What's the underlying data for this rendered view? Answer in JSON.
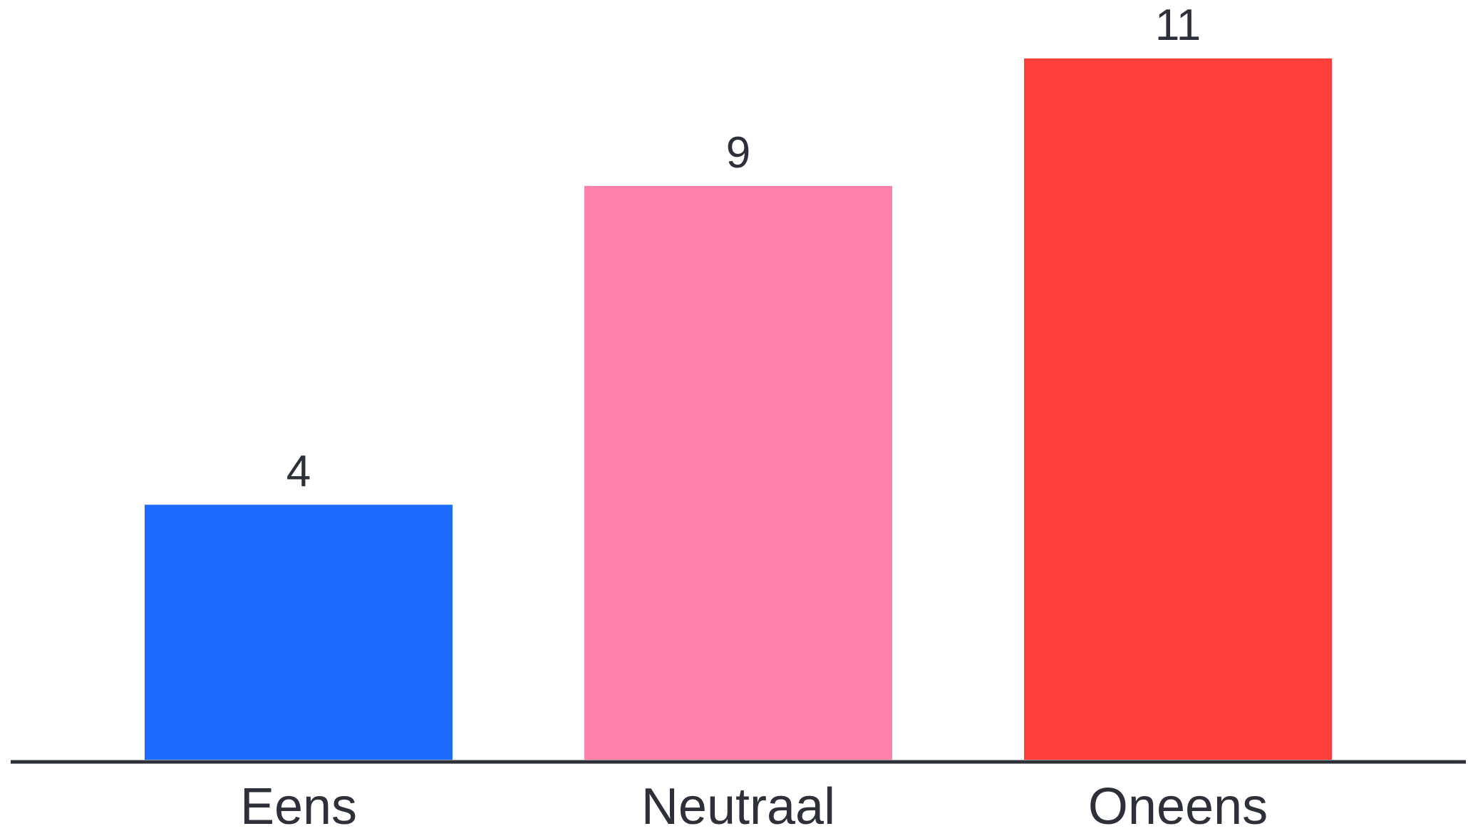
{
  "chart_data": {
    "type": "bar",
    "categories": [
      "Eens",
      "Neutraal",
      "Oneens"
    ],
    "values": [
      4,
      9,
      11
    ],
    "colors": [
      "#1e6bff",
      "#ff80a8",
      "#ff3f3c"
    ],
    "axis_color": "#2d3038",
    "label_color": "#2d3038",
    "ylim": [
      0,
      11
    ],
    "grid": false,
    "legend": "none",
    "data_labels": true
  }
}
